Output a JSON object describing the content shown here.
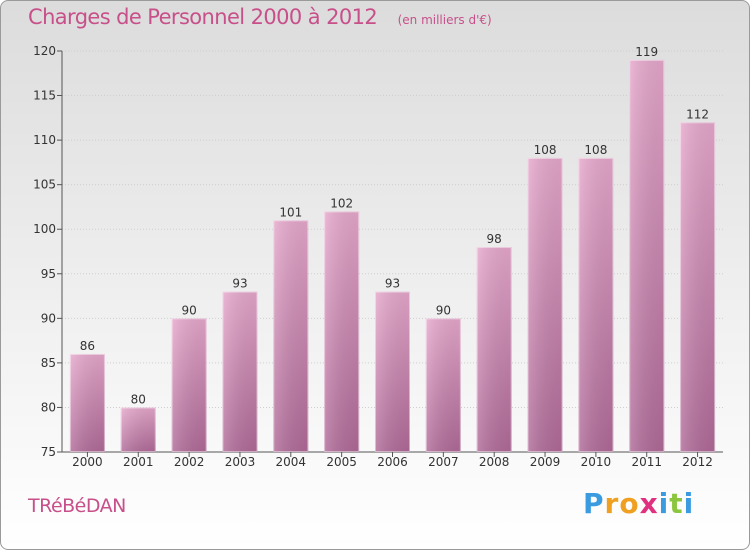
{
  "title": "Charges de Personnel 2000 à 2012",
  "subtitle": "(en milliers d'€)",
  "commune": "TRéBéDAN",
  "brand": {
    "text": "Proxiti",
    "letters": [
      {
        "ch": "P",
        "color": "#3a9be0"
      },
      {
        "ch": "r",
        "color": "#f0a020"
      },
      {
        "ch": "o",
        "color": "#f0a020"
      },
      {
        "ch": "x",
        "color": "#e03080"
      },
      {
        "ch": "i",
        "color": "#3a9be0"
      },
      {
        "ch": "t",
        "color": "#8cc63f"
      },
      {
        "ch": "i",
        "color": "#3a9be0"
      }
    ]
  },
  "colors": {
    "bar": "#c86ea6",
    "bar_light": "#e6a8cc",
    "bar_dark": "#b06a98",
    "title": "#c8508a"
  },
  "chart_data": {
    "type": "bar",
    "categories": [
      "2000",
      "2001",
      "2002",
      "2003",
      "2004",
      "2005",
      "2006",
      "2007",
      "2008",
      "2009",
      "2010",
      "2011",
      "2012"
    ],
    "values": [
      86,
      80,
      90,
      93,
      101,
      102,
      93,
      90,
      98,
      108,
      108,
      119,
      112
    ],
    "data_labels": [
      "86",
      "80",
      "90",
      "93",
      "101",
      "102",
      "93",
      "90",
      "98",
      "108",
      "108",
      "119",
      "112"
    ],
    "title": "Charges de Personnel 2000 à 2012",
    "subtitle": "(en milliers d'€)",
    "ylim": [
      75,
      120
    ],
    "yticks": [
      75,
      80,
      85,
      90,
      95,
      100,
      105,
      110,
      115,
      120
    ],
    "grid": true
  }
}
